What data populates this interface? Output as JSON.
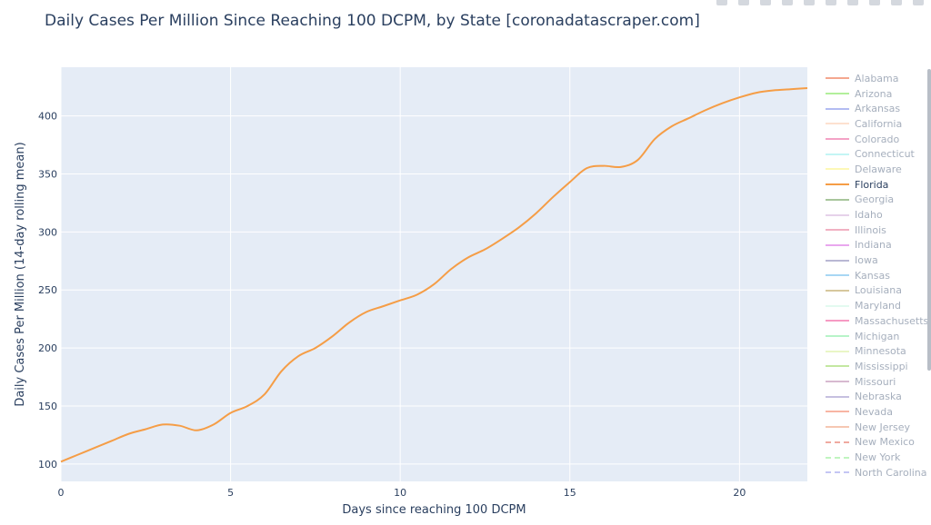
{
  "header": {
    "title": "Daily Cases Per Million Since Reaching 100 DCPM, by State [coronadatascraper.com]"
  },
  "chart_data": {
    "type": "line",
    "title": "Daily Cases Per Million Since Reaching 100 DCPM, by State [coronadatascraper.com]",
    "xlabel": "Days since reaching 100 DCPM",
    "ylabel": "Daily Cases Per Million (14-day rolling mean)",
    "xlim": [
      0,
      22
    ],
    "ylim": [
      85,
      442
    ],
    "xticks": [
      0,
      5,
      10,
      15,
      20
    ],
    "yticks": [
      100,
      150,
      200,
      250,
      300,
      350,
      400
    ],
    "grid": true,
    "legend_position": "right",
    "plot_bg": "#e5ecf6",
    "series": [
      {
        "name": "Florida",
        "color": "#f59d46",
        "x": [
          0,
          0.5,
          1,
          1.5,
          2,
          2.5,
          3,
          3.5,
          4,
          4.5,
          5,
          5.5,
          6,
          6.5,
          7,
          7.5,
          8,
          8.5,
          9,
          9.5,
          10,
          10.5,
          11,
          11.5,
          12,
          12.5,
          13,
          13.5,
          14,
          14.5,
          15,
          15.5,
          16,
          16.5,
          17,
          17.5,
          18,
          18.5,
          19,
          19.5,
          20,
          20.5,
          21,
          21.5,
          22
        ],
        "y": [
          102,
          108,
          114,
          120,
          126,
          130,
          134,
          133,
          129,
          134,
          144,
          150,
          160,
          180,
          193,
          200,
          210,
          222,
          231,
          236,
          241,
          246,
          255,
          268,
          278,
          285,
          294,
          304,
          316,
          330,
          343,
          355,
          357,
          356,
          362,
          380,
          391,
          398,
          405,
          411,
          416,
          420,
          422,
          423,
          424
        ]
      }
    ],
    "legend": [
      {
        "name": "Alabama",
        "color": "#f4a78f",
        "dash": "solid"
      },
      {
        "name": "Arizona",
        "color": "#b2ef9b",
        "dash": "solid"
      },
      {
        "name": "Arkansas",
        "color": "#b3bcf2",
        "dash": "solid"
      },
      {
        "name": "California",
        "color": "#fde1cf",
        "dash": "solid"
      },
      {
        "name": "Colorado",
        "color": "#f4a2c6",
        "dash": "solid"
      },
      {
        "name": "Connecticut",
        "color": "#c4f5f4",
        "dash": "solid"
      },
      {
        "name": "Delaware",
        "color": "#fdf8b6",
        "dash": "solid"
      },
      {
        "name": "Florida",
        "color": "#f59d46",
        "dash": "solid"
      },
      {
        "name": "Georgia",
        "color": "#a8c69c",
        "dash": "solid"
      },
      {
        "name": "Idaho",
        "color": "#e6d2ea",
        "dash": "solid"
      },
      {
        "name": "Illinois",
        "color": "#f1b1c2",
        "dash": "solid"
      },
      {
        "name": "Indiana",
        "color": "#e9a7ee",
        "dash": "solid"
      },
      {
        "name": "Iowa",
        "color": "#b9b8d4",
        "dash": "solid"
      },
      {
        "name": "Kansas",
        "color": "#a8d7f4",
        "dash": "solid"
      },
      {
        "name": "Louisiana",
        "color": "#d7c79d",
        "dash": "solid"
      },
      {
        "name": "Maryland",
        "color": "#e3faf0",
        "dash": "solid"
      },
      {
        "name": "Massachusetts",
        "color": "#f69ac3",
        "dash": "solid"
      },
      {
        "name": "Michigan",
        "color": "#b7f4c8",
        "dash": "solid"
      },
      {
        "name": "Minnesota",
        "color": "#eaf6c6",
        "dash": "solid"
      },
      {
        "name": "Mississippi",
        "color": "#c3e7a1",
        "dash": "solid"
      },
      {
        "name": "Missouri",
        "color": "#d7b9d0",
        "dash": "solid"
      },
      {
        "name": "Nebraska",
        "color": "#c6c0e0",
        "dash": "solid"
      },
      {
        "name": "Nevada",
        "color": "#f8b5a3",
        "dash": "solid"
      },
      {
        "name": "New Jersey",
        "color": "#f6c7b2",
        "dash": "solid"
      },
      {
        "name": "New Mexico",
        "color": "#f0aaa0",
        "dash": "dash"
      },
      {
        "name": "New York",
        "color": "#c0f5bf",
        "dash": "dash"
      },
      {
        "name": "North Carolina",
        "color": "#c4c6f4",
        "dash": "dash"
      }
    ]
  }
}
